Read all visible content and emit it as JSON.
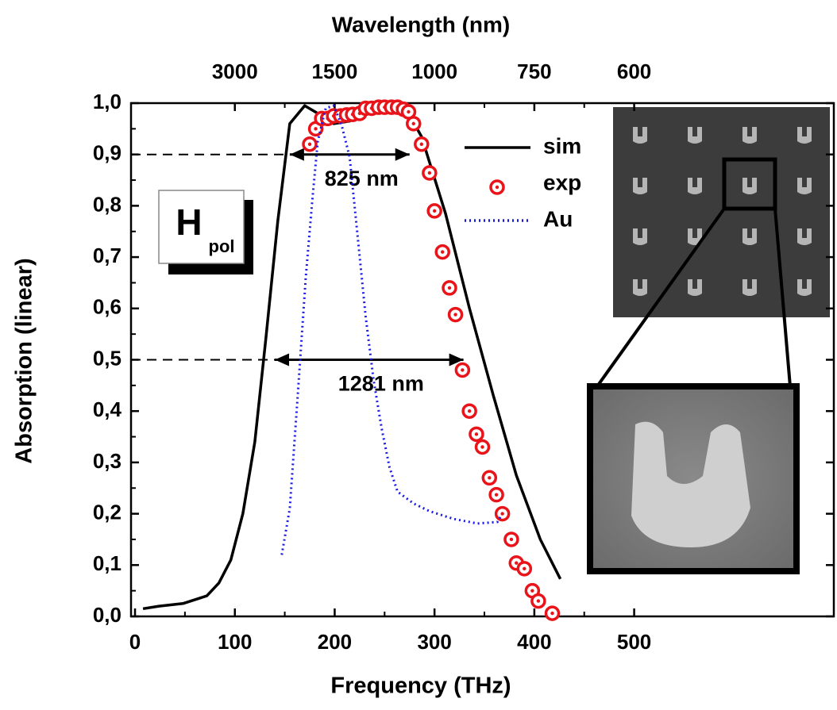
{
  "chart_data": {
    "type": "line",
    "x_label": "Frequency (THz)",
    "x2_label": "Wavelength (nm)",
    "y_label": "Absorption (linear)",
    "xlim": [
      -4,
      700
    ],
    "ylim": [
      0,
      1
    ],
    "xticks": [
      0,
      100,
      200,
      300,
      400,
      500
    ],
    "x2ticks": [
      {
        "value": 100,
        "label": "3000"
      },
      {
        "value": 200,
        "label": "1500"
      },
      {
        "value": 300,
        "label": "1000"
      },
      {
        "value": 400,
        "label": "750"
      },
      {
        "value": 500,
        "label": "600"
      }
    ],
    "yticks": [
      {
        "value": 0,
        "label": "0,0"
      },
      {
        "value": 0.1,
        "label": "0,1"
      },
      {
        "value": 0.2,
        "label": "0,2"
      },
      {
        "value": 0.3,
        "label": "0,3"
      },
      {
        "value": 0.4,
        "label": "0,4"
      },
      {
        "value": 0.5,
        "label": "0,5"
      },
      {
        "value": 0.6,
        "label": "0,6"
      },
      {
        "value": 0.7,
        "label": "0,7"
      },
      {
        "value": 0.8,
        "label": "0,8"
      },
      {
        "value": 0.9,
        "label": "0,9"
      },
      {
        "value": 1,
        "label": "1,0"
      }
    ],
    "series": [
      {
        "name": "sim",
        "color": "#000000",
        "style": "solid",
        "x": [
          8,
          24,
          48,
          72,
          84,
          96,
          108,
          120,
          131,
          143,
          155,
          170,
          183,
          199,
          215,
          231,
          255,
          271,
          287,
          311,
          335,
          359,
          382,
          406,
          426
        ],
        "values": [
          0.015,
          0.02,
          0.025,
          0.04,
          0.065,
          0.11,
          0.2,
          0.34,
          0.54,
          0.77,
          0.96,
          0.995,
          0.98,
          0.96,
          0.965,
          0.99,
          0.998,
          0.99,
          0.935,
          0.785,
          0.6,
          0.43,
          0.275,
          0.15,
          0.073
        ]
      },
      {
        "name": "exp",
        "color": "#e8141a",
        "style": "markers",
        "x": [
          175,
          181,
          187,
          193,
          199,
          206,
          212,
          218,
          225,
          231,
          237,
          244,
          250,
          257,
          263,
          269,
          274,
          279,
          287,
          295,
          300,
          308,
          315,
          321,
          328,
          335,
          342,
          348,
          355,
          362,
          368,
          377,
          382,
          390,
          398,
          404,
          418
        ],
        "values": [
          0.92,
          0.95,
          0.97,
          0.97,
          0.975,
          0.975,
          0.977,
          0.978,
          0.98,
          0.99,
          0.99,
          0.992,
          0.992,
          0.992,
          0.992,
          0.988,
          0.983,
          0.96,
          0.92,
          0.864,
          0.79,
          0.71,
          0.64,
          0.588,
          0.48,
          0.4,
          0.355,
          0.33,
          0.27,
          0.237,
          0.2,
          0.15,
          0.104,
          0.093,
          0.05,
          0.03,
          0.006
        ]
      },
      {
        "name": "Au",
        "color": "#1a1ae6",
        "style": "dotted",
        "x": [
          147,
          155,
          163,
          171,
          178,
          183,
          191,
          199,
          207,
          215,
          223,
          231,
          239,
          247,
          255,
          263,
          279,
          295,
          319,
          343,
          363,
          367
        ],
        "values": [
          0.12,
          0.21,
          0.43,
          0.66,
          0.82,
          0.925,
          0.99,
          0.995,
          0.957,
          0.895,
          0.74,
          0.585,
          0.46,
          0.367,
          0.29,
          0.243,
          0.22,
          0.205,
          0.19,
          0.181,
          0.184,
          0.197
        ]
      }
    ],
    "annotations": [
      {
        "text": "825 nm",
        "y": 0.9,
        "x": [
          155,
          275
        ]
      },
      {
        "text": "1281 nm",
        "y": 0.5,
        "x": [
          140,
          329
        ]
      }
    ],
    "inset_label": {
      "main": "H",
      "sub": "pol"
    }
  }
}
